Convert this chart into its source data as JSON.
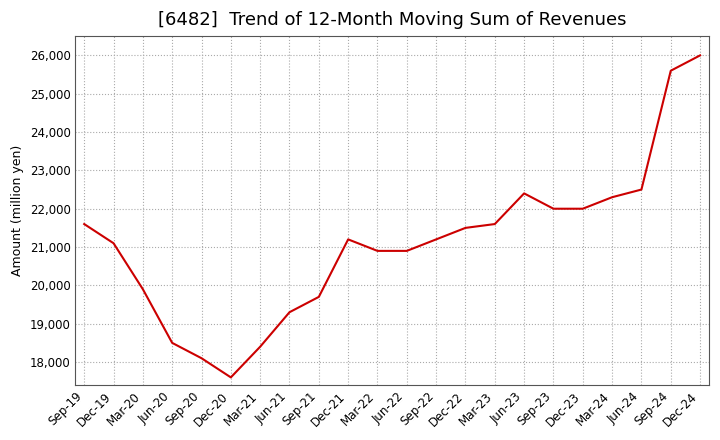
{
  "title": "[6482]  Trend of 12-Month Moving Sum of Revenues",
  "ylabel": "Amount (million yen)",
  "x_labels": [
    "Sep-19",
    "Dec-19",
    "Mar-20",
    "Jun-20",
    "Sep-20",
    "Dec-20",
    "Mar-21",
    "Jun-21",
    "Sep-21",
    "Dec-21",
    "Mar-22",
    "Jun-22",
    "Sep-22",
    "Dec-22",
    "Mar-23",
    "Jun-23",
    "Sep-23",
    "Dec-23",
    "Mar-24",
    "Jun-24",
    "Sep-24",
    "Dec-24"
  ],
  "values": [
    21600,
    21100,
    19900,
    18500,
    18100,
    17600,
    18400,
    19300,
    19700,
    21200,
    20900,
    20900,
    21200,
    21500,
    21600,
    22400,
    22000,
    22000,
    22300,
    22500,
    25600,
    26000
  ],
  "line_color": "#cc0000",
  "ylim": [
    17400,
    26500
  ],
  "yticks": [
    18000,
    19000,
    20000,
    21000,
    22000,
    23000,
    24000,
    25000,
    26000
  ],
  "background_color": "#ffffff",
  "grid_color": "#aaaaaa",
  "title_fontsize": 13,
  "label_fontsize": 9,
  "tick_fontsize": 8.5
}
